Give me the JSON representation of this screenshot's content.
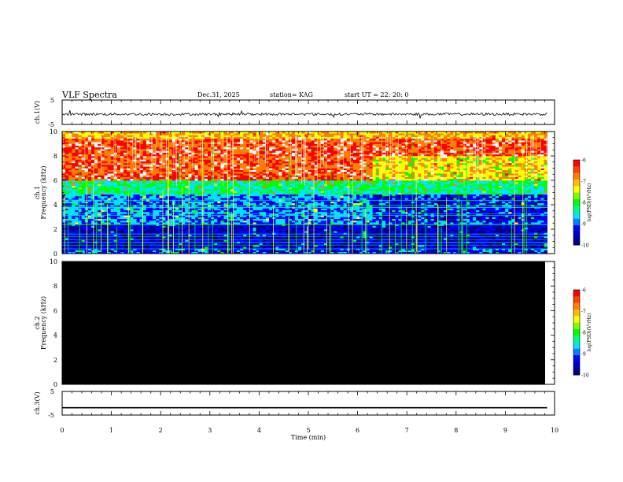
{
  "header": {
    "title": "VLF Spectra",
    "date": "Dec.31, 2025",
    "station": "station= KAG",
    "start_ut": "start  UT =   22: 20: 0"
  },
  "chart_data": [
    {
      "type": "line",
      "name": "ch1-voltage",
      "ylabel": "ch.1(V)",
      "ylim": [
        -5,
        5
      ],
      "ytick_labels": [
        "5",
        "-5"
      ],
      "xlim": [
        0,
        10
      ],
      "description_level": -0.8,
      "noise_amplitude": 0.5
    },
    {
      "type": "heatmap",
      "name": "ch1-spectrogram",
      "ylabel": "ch.1\nFrequency (kHz)",
      "ylim": [
        0,
        10
      ],
      "ytick_labels": [
        "0",
        "2",
        "4",
        "6",
        "8",
        "10"
      ],
      "xlim": [
        0,
        9.85
      ],
      "colorbar": {
        "label": "log(PSD)(V²/Hz)",
        "range": [
          -10,
          -6
        ],
        "tick_labels": [
          "-6",
          "-7",
          "-8",
          "-9",
          "-10"
        ]
      },
      "bands": [
        {
          "from": 0,
          "to": 0.5,
          "level": -9.3
        },
        {
          "from": 0.5,
          "to": 2.5,
          "level": -9.6
        },
        {
          "from": 2.5,
          "to": 4.8,
          "level": -9.0
        },
        {
          "from": 4.8,
          "to": 6.0,
          "level": -8.3
        },
        {
          "from": 6.0,
          "to": 9.4,
          "level": -6.3
        },
        {
          "from": 9.4,
          "to": 10,
          "level": -7.0
        }
      ],
      "late_shift_min": 6.3
    },
    {
      "type": "heatmap",
      "name": "ch2-spectrogram",
      "ylabel": "ch.2\nFrequency (kHz)",
      "ylim": [
        0,
        10
      ],
      "ytick_labels": [
        "0",
        "2",
        "4",
        "6",
        "8",
        "10"
      ],
      "xlim": [
        0,
        9.85
      ],
      "fill": "#000000",
      "colorbar": {
        "label": "log(PSD)(V²/Hz)",
        "range": [
          -10,
          -6
        ],
        "tick_labels": [
          "-6",
          "-7",
          "-8",
          "-9",
          "-10"
        ]
      }
    },
    {
      "type": "line",
      "name": "ch3-voltage",
      "ylabel": "ch.3(V)",
      "ylim": [
        -5,
        5
      ],
      "ytick_labels": [
        "5",
        "-5"
      ],
      "xlim": [
        0,
        9.85
      ],
      "level": -1.9
    }
  ],
  "xaxis": {
    "label": "Time (min)",
    "range": [
      0,
      10
    ],
    "tick_labels": [
      "0",
      "1",
      "2",
      "3",
      "4",
      "5",
      "6",
      "7",
      "8",
      "9",
      "10"
    ]
  },
  "colors": {
    "scale": [
      "#000080",
      "#0000ff",
      "#00e5ff",
      "#00ff00",
      "#ffff00",
      "#ff7f00",
      "#ff0000",
      "#ffffff"
    ]
  }
}
